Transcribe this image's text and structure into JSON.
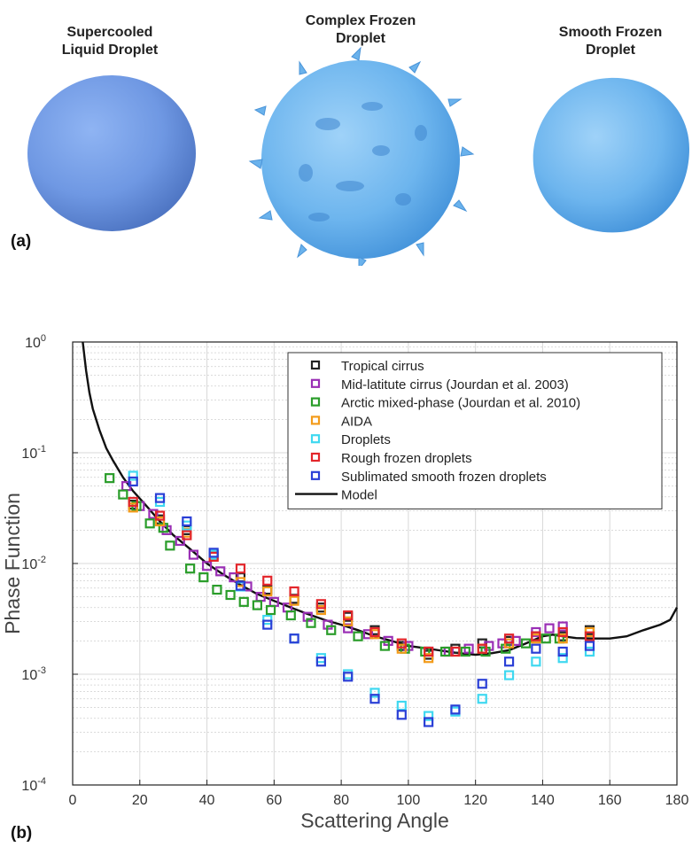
{
  "panel_a": {
    "tag": "(a)",
    "droplets": [
      {
        "label": "Supercooled\nLiquid Droplet"
      },
      {
        "label": "Complex Frozen\nDroplet"
      },
      {
        "label": "Smooth Frozen\nDroplet"
      }
    ]
  },
  "panel_b": {
    "tag": "(b)"
  },
  "chart_data": {
    "type": "scatter",
    "xlabel": "Scattering Angle",
    "ylabel": "Phase Function",
    "xlim": [
      0,
      180
    ],
    "ylim": [
      0.0001,
      1
    ],
    "yscale": "log",
    "xticks": [
      "0",
      "20",
      "40",
      "60",
      "80",
      "100",
      "120",
      "140",
      "160",
      "180"
    ],
    "yticks": [
      {
        "base": "10",
        "exp": "-4",
        "value": 0.0001
      },
      {
        "base": "10",
        "exp": "-3",
        "value": 0.001
      },
      {
        "base": "10",
        "exp": "-2",
        "value": 0.01
      },
      {
        "base": "10",
        "exp": "-1",
        "value": 0.1
      },
      {
        "base": "10",
        "exp": "0",
        "value": 1
      }
    ],
    "grid": true,
    "legend_position": "top-right",
    "series": [
      {
        "name": "Tropical cirrus",
        "color": "#222222",
        "marker": "square",
        "points": [
          [
            18,
            0.034
          ],
          [
            26,
            0.025
          ],
          [
            34,
            0.02
          ],
          [
            42,
            0.012
          ],
          [
            50,
            0.0075
          ],
          [
            58,
            0.0058
          ],
          [
            66,
            0.0048
          ],
          [
            74,
            0.004
          ],
          [
            82,
            0.0033
          ],
          [
            90,
            0.0025
          ],
          [
            98,
            0.0018
          ],
          [
            106,
            0.0015
          ],
          [
            114,
            0.0017
          ],
          [
            122,
            0.0019
          ],
          [
            130,
            0.002
          ],
          [
            138,
            0.0022
          ],
          [
            146,
            0.0022
          ],
          [
            154,
            0.0025
          ]
        ]
      },
      {
        "name": "Mid-latitute cirrus (Jourdan et al. 2003)",
        "color": "#9a2fb5",
        "marker": "square",
        "points": [
          [
            16,
            0.05
          ],
          [
            20,
            0.033
          ],
          [
            24,
            0.028
          ],
          [
            28,
            0.02
          ],
          [
            32,
            0.016
          ],
          [
            36,
            0.012
          ],
          [
            40,
            0.0095
          ],
          [
            44,
            0.0085
          ],
          [
            48,
            0.0075
          ],
          [
            52,
            0.0062
          ],
          [
            56,
            0.005
          ],
          [
            60,
            0.0045
          ],
          [
            64,
            0.004
          ],
          [
            70,
            0.0033
          ],
          [
            76,
            0.0028
          ],
          [
            82,
            0.0026
          ],
          [
            88,
            0.0023
          ],
          [
            94,
            0.002
          ],
          [
            100,
            0.0018
          ],
          [
            106,
            0.0016
          ],
          [
            112,
            0.0016
          ],
          [
            118,
            0.0017
          ],
          [
            124,
            0.0018
          ],
          [
            128,
            0.0019
          ],
          [
            132,
            0.002
          ],
          [
            138,
            0.0024
          ],
          [
            142,
            0.0026
          ],
          [
            146,
            0.0027
          ]
        ]
      },
      {
        "name": "Arctic mixed-phase (Jourdan et al. 2010)",
        "color": "#2a9d2a",
        "marker": "square",
        "points": [
          [
            11,
            0.059
          ],
          [
            15,
            0.042
          ],
          [
            19,
            0.033
          ],
          [
            23,
            0.023
          ],
          [
            27,
            0.021
          ],
          [
            29,
            0.0145
          ],
          [
            35,
            0.009
          ],
          [
            39,
            0.0075
          ],
          [
            43,
            0.0058
          ],
          [
            47,
            0.0052
          ],
          [
            51,
            0.0045
          ],
          [
            55,
            0.0042
          ],
          [
            59,
            0.0038
          ],
          [
            65,
            0.0034
          ],
          [
            71,
            0.0029
          ],
          [
            77,
            0.0025
          ],
          [
            85,
            0.0022
          ],
          [
            93,
            0.0018
          ],
          [
            99,
            0.0017
          ],
          [
            105,
            0.0016
          ],
          [
            111,
            0.0016
          ],
          [
            117,
            0.0016
          ],
          [
            123,
            0.0016
          ],
          [
            129,
            0.0017
          ],
          [
            135,
            0.0019
          ],
          [
            141,
            0.0021
          ],
          [
            145,
            0.0021
          ]
        ]
      },
      {
        "name": "AIDA",
        "color": "#f39b1a",
        "marker": "square",
        "points": [
          [
            18,
            0.032
          ],
          [
            26,
            0.024
          ],
          [
            34,
            0.019
          ],
          [
            42,
            0.0115
          ],
          [
            50,
            0.0068
          ],
          [
            58,
            0.0056
          ],
          [
            66,
            0.0046
          ],
          [
            74,
            0.0038
          ],
          [
            82,
            0.003
          ],
          [
            90,
            0.0023
          ],
          [
            98,
            0.0017
          ],
          [
            106,
            0.0014
          ],
          [
            114,
            0.0016
          ],
          [
            122,
            0.0017
          ],
          [
            130,
            0.0019
          ],
          [
            138,
            0.0021
          ],
          [
            146,
            0.0021
          ],
          [
            154,
            0.0024
          ]
        ]
      },
      {
        "name": "Droplets",
        "color": "#3fd8f0",
        "marker": "square",
        "points": [
          [
            18,
            0.062
          ],
          [
            26,
            0.036
          ],
          [
            34,
            0.022
          ],
          [
            42,
            0.012
          ],
          [
            50,
            0.0062
          ],
          [
            58,
            0.0031
          ],
          [
            66,
            0.0021
          ],
          [
            74,
            0.0014
          ],
          [
            82,
            0.001
          ],
          [
            90,
            0.00068
          ],
          [
            98,
            0.00052
          ],
          [
            106,
            0.00042
          ],
          [
            114,
            0.00046
          ],
          [
            122,
            0.0006
          ],
          [
            130,
            0.00098
          ],
          [
            138,
            0.0013
          ],
          [
            146,
            0.0014
          ],
          [
            154,
            0.0016
          ]
        ]
      },
      {
        "name": "Rough frozen droplets",
        "color": "#e3262b",
        "marker": "square",
        "points": [
          [
            18,
            0.036
          ],
          [
            26,
            0.027
          ],
          [
            34,
            0.018
          ],
          [
            42,
            0.0115
          ],
          [
            50,
            0.009
          ],
          [
            58,
            0.007
          ],
          [
            66,
            0.0056
          ],
          [
            74,
            0.0043
          ],
          [
            82,
            0.0034
          ],
          [
            90,
            0.0024
          ],
          [
            98,
            0.0019
          ],
          [
            106,
            0.0016
          ],
          [
            114,
            0.0016
          ],
          [
            122,
            0.0017
          ],
          [
            130,
            0.0021
          ],
          [
            138,
            0.0022
          ],
          [
            146,
            0.0024
          ],
          [
            154,
            0.0022
          ]
        ]
      },
      {
        "name": "Sublimated smooth frozen droplets",
        "color": "#2a3fd6",
        "marker": "square",
        "points": [
          [
            18,
            0.055
          ],
          [
            26,
            0.039
          ],
          [
            34,
            0.024
          ],
          [
            42,
            0.0125
          ],
          [
            50,
            0.0063
          ],
          [
            58,
            0.0028
          ],
          [
            66,
            0.0021
          ],
          [
            74,
            0.0013
          ],
          [
            82,
            0.00095
          ],
          [
            90,
            0.0006
          ],
          [
            98,
            0.00043
          ],
          [
            106,
            0.00037
          ],
          [
            114,
            0.00048
          ],
          [
            122,
            0.00082
          ],
          [
            130,
            0.0013
          ],
          [
            138,
            0.0017
          ],
          [
            146,
            0.0016
          ],
          [
            154,
            0.0018
          ]
        ]
      },
      {
        "name": "Model",
        "color": "#111111",
        "marker": "line",
        "points": [
          [
            3,
            1.0
          ],
          [
            4,
            0.55
          ],
          [
            5,
            0.35
          ],
          [
            6,
            0.25
          ],
          [
            8,
            0.16
          ],
          [
            10,
            0.11
          ],
          [
            12,
            0.085
          ],
          [
            15,
            0.06
          ],
          [
            18,
            0.045
          ],
          [
            22,
            0.033
          ],
          [
            26,
            0.024
          ],
          [
            30,
            0.018
          ],
          [
            35,
            0.0135
          ],
          [
            40,
            0.01
          ],
          [
            45,
            0.0079
          ],
          [
            50,
            0.0064
          ],
          [
            55,
            0.0053
          ],
          [
            60,
            0.0046
          ],
          [
            65,
            0.004
          ],
          [
            70,
            0.0035
          ],
          [
            75,
            0.0031
          ],
          [
            80,
            0.0028
          ],
          [
            85,
            0.0025
          ],
          [
            90,
            0.0022
          ],
          [
            95,
            0.002
          ],
          [
            100,
            0.0018
          ],
          [
            105,
            0.00172
          ],
          [
            110,
            0.00163
          ],
          [
            115,
            0.00155
          ],
          [
            120,
            0.0015
          ],
          [
            125,
            0.00155
          ],
          [
            130,
            0.00165
          ],
          [
            135,
            0.0019
          ],
          [
            140,
            0.0022
          ],
          [
            143,
            0.00228
          ],
          [
            146,
            0.0022
          ],
          [
            150,
            0.00212
          ],
          [
            155,
            0.0021
          ],
          [
            160,
            0.0021
          ],
          [
            165,
            0.0022
          ],
          [
            170,
            0.0025
          ],
          [
            175,
            0.0028
          ],
          [
            178,
            0.0031
          ],
          [
            180,
            0.004
          ]
        ]
      }
    ]
  }
}
